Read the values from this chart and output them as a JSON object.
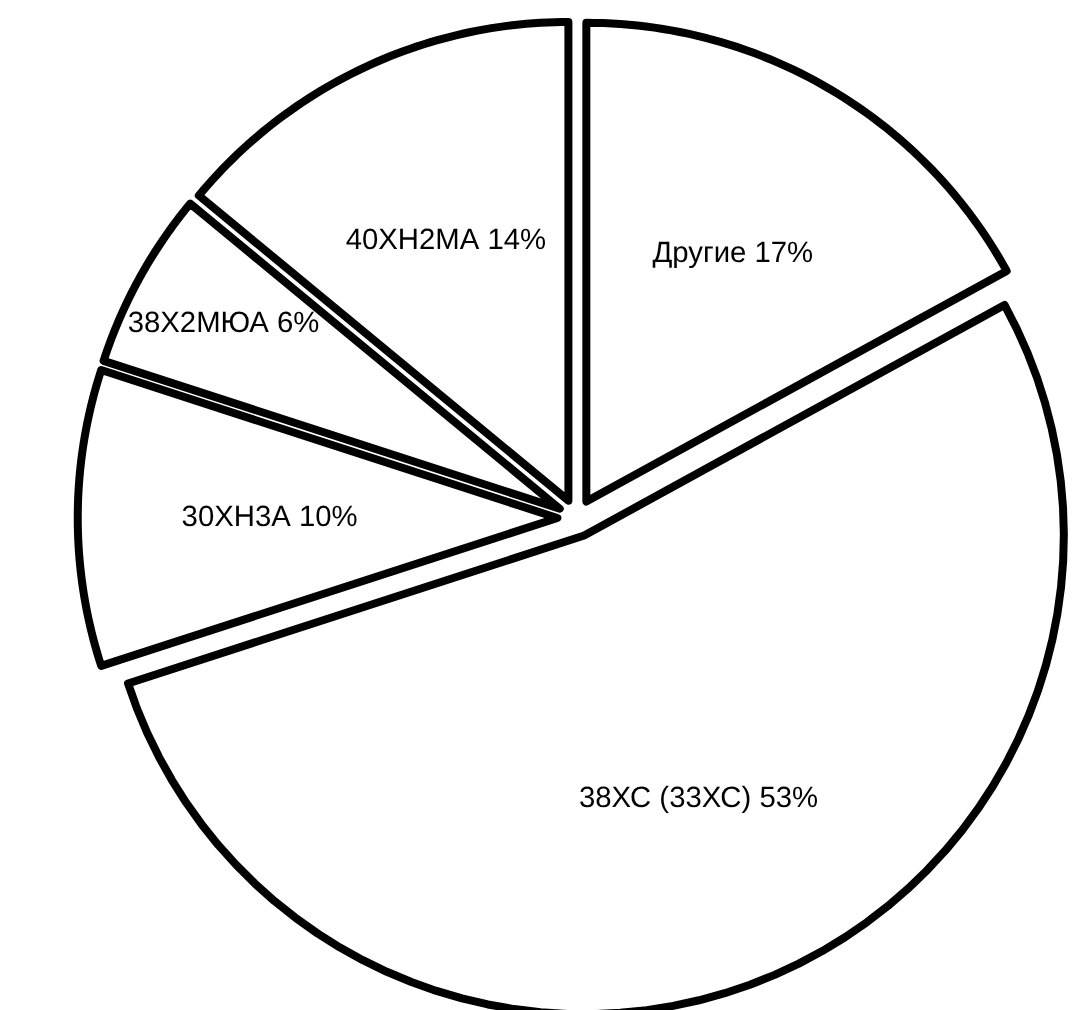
{
  "chart_data": {
    "type": "pie",
    "categories": [
      "Другие",
      "38ХС (33ХС)",
      "30ХН3А",
      "38Х2МЮА",
      "40ХН2МА"
    ],
    "values": [
      17,
      53,
      10,
      6,
      14
    ],
    "value_labels": [
      "17%",
      "53%",
      "10%",
      "6%",
      "14%"
    ],
    "colors": [
      "#ffffff",
      "#ffffff",
      "#ffffff",
      "#ffffff",
      "#ffffff"
    ]
  }
}
